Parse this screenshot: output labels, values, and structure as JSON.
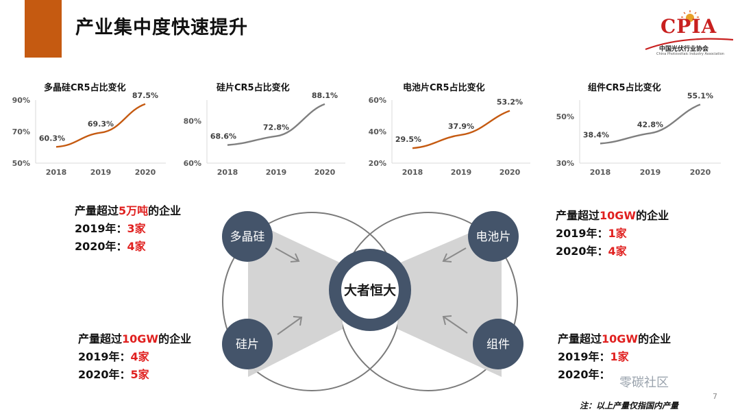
{
  "header": {
    "title": "产业集中度快速提升"
  },
  "logo": {
    "text": "CPIA",
    "subtitle": "中国光伏行业协会",
    "subtitle_en": "China Photovoltaic Industry Association"
  },
  "chart_data": [
    {
      "type": "line",
      "title": "多晶硅CR5占比变化",
      "categories": [
        "2018",
        "2019",
        "2020"
      ],
      "series": [
        {
          "values": [
            60.3,
            69.3,
            87.5
          ],
          "labels": [
            "60.3%",
            "69.3%",
            "87.5%"
          ]
        }
      ],
      "yticks": [
        "50%",
        "70%",
        "90%"
      ],
      "ylim": [
        50,
        90
      ],
      "color": "#c55a11"
    },
    {
      "type": "line",
      "title": "硅片CR5占比变化",
      "categories": [
        "2018",
        "2019",
        "2020"
      ],
      "series": [
        {
          "values": [
            68.6,
            72.8,
            88.1
          ],
          "labels": [
            "68.6%",
            "72.8%",
            "88.1%"
          ]
        }
      ],
      "yticks": [
        "60%",
        "80%"
      ],
      "ylim": [
        60,
        90
      ],
      "color": "#7f7f7f"
    },
    {
      "type": "line",
      "title": "电池片CR5占比变化",
      "categories": [
        "2018",
        "2019",
        "2020"
      ],
      "series": [
        {
          "values": [
            29.5,
            37.9,
            53.2
          ],
          "labels": [
            "29.5%",
            "37.9%",
            "53.2%"
          ]
        }
      ],
      "yticks": [
        "20%",
        "40%",
        "60%"
      ],
      "ylim": [
        20,
        60
      ],
      "color": "#c55a11"
    },
    {
      "type": "line",
      "title": "组件CR5占比变化",
      "categories": [
        "2018",
        "2019",
        "2020"
      ],
      "series": [
        {
          "values": [
            38.4,
            42.8,
            55.1
          ],
          "labels": [
            "38.4%",
            "42.8%",
            "55.1%"
          ]
        }
      ],
      "yticks": [
        "30%",
        "50%"
      ],
      "ylim": [
        30,
        57
      ],
      "color": "#7f7f7f"
    }
  ],
  "diagram": {
    "center": "大者恒大",
    "nodes": {
      "polysilicon": "多晶硅",
      "wafer": "硅片",
      "cell": "电池片",
      "module": "组件"
    }
  },
  "stats": {
    "polysilicon": {
      "lead": "产量超过",
      "threshold": "5万吨",
      "tail": "的企业",
      "rows": [
        {
          "year": "2019年：",
          "count": "3家"
        },
        {
          "year": "2020年：",
          "count": "4家"
        }
      ]
    },
    "cell": {
      "lead": "产量超过",
      "threshold": "10GW",
      "tail": "的企业",
      "rows": [
        {
          "year": "2019年：",
          "count": "1家"
        },
        {
          "year": "2020年：",
          "count": "4家"
        }
      ]
    },
    "wafer": {
      "lead": "产量超过",
      "threshold": "10GW",
      "tail": "的企业",
      "rows": [
        {
          "year": "2019年：",
          "count": "4家"
        },
        {
          "year": "2020年：",
          "count": "5家"
        }
      ]
    },
    "module": {
      "lead": "产量超过",
      "threshold": "10GW",
      "tail": "的企业",
      "rows": [
        {
          "year": "2019年：",
          "count": "1家"
        },
        {
          "year": "2020年：",
          "count": ""
        }
      ]
    }
  },
  "footer": {
    "note": "注：以上产量仅指国内产量",
    "page": "7",
    "watermark": "零碳社区"
  }
}
